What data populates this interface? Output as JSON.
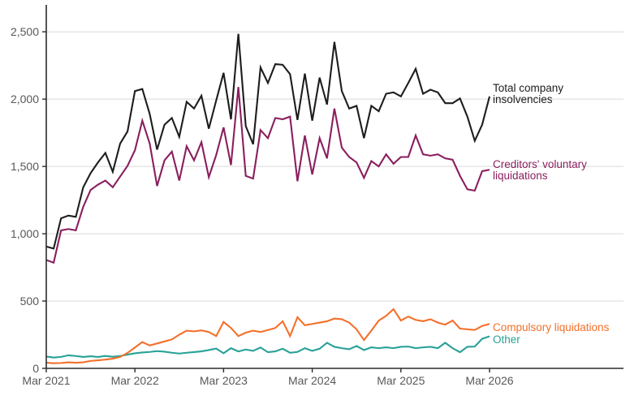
{
  "page": {
    "background": "#ffffff"
  },
  "colors": {
    "grid": "#d9d9d9",
    "axis": "#2b2b2b",
    "tick_text": "#57585a"
  },
  "chart_data": {
    "type": "line",
    "title": "",
    "xlabel": "",
    "ylabel": "",
    "grid": "horizontal",
    "legend_position": "inline-right-of-lines",
    "x_axis": {
      "unit": "month",
      "tick_labels": [
        "Mar 2021",
        "Mar 2022",
        "Mar 2023",
        "Mar 2024",
        "Mar 2025",
        "Mar 2026"
      ],
      "tick_month_indices": [
        0,
        12,
        24,
        36,
        48,
        60
      ]
    },
    "y_axis": {
      "range": [
        0,
        2500
      ],
      "ticks": [
        0,
        500,
        1000,
        1500,
        2000,
        2500
      ],
      "tick_labels": [
        "0",
        "500",
        "1,000",
        "1,500",
        "2,000",
        "2,500"
      ]
    },
    "months": [
      "Mar 2021",
      "Apr 2021",
      "May 2021",
      "Jun 2021",
      "Jul 2021",
      "Aug 2021",
      "Sep 2021",
      "Oct 2021",
      "Nov 2021",
      "Dec 2021",
      "Jan 2022",
      "Feb 2022",
      "Mar 2022",
      "Apr 2022",
      "May 2022",
      "Jun 2022",
      "Jul 2022",
      "Aug 2022",
      "Sep 2022",
      "Oct 2022",
      "Nov 2022",
      "Dec 2022",
      "Jan 2023",
      "Feb 2023",
      "Mar 2023",
      "Apr 2023",
      "May 2023",
      "Jun 2023",
      "Jul 2023",
      "Aug 2023",
      "Sep 2023",
      "Oct 2023",
      "Nov 2023",
      "Dec 2023",
      "Jan 2024",
      "Feb 2024",
      "Mar 2024",
      "Apr 2024",
      "May 2024",
      "Jun 2024",
      "Jul 2024",
      "Aug 2024",
      "Sep 2024",
      "Oct 2024",
      "Nov 2024",
      "Dec 2024",
      "Jan 2025",
      "Feb 2025",
      "Mar 2025",
      "Apr 2025",
      "May 2025",
      "Jun 2025",
      "Jul 2025",
      "Aug 2025",
      "Sep 2025",
      "Oct 2025",
      "Nov 2025",
      "Dec 2025",
      "Jan 2026",
      "Feb 2026",
      "Mar 2026"
    ],
    "series": [
      {
        "name": "Total company insolvencies",
        "color": "#1d1d1d",
        "label_lines": [
          "Total company",
          "insolvencies"
        ],
        "values": [
          905,
          890,
          1115,
          1135,
          1125,
          1345,
          1450,
          1530,
          1600,
          1460,
          1670,
          1760,
          2060,
          2075,
          1890,
          1625,
          1810,
          1860,
          1720,
          1980,
          1930,
          2025,
          1780,
          1990,
          2195,
          1850,
          2485,
          1800,
          1665,
          2235,
          2120,
          2260,
          2255,
          2185,
          1845,
          2190,
          1840,
          2160,
          1960,
          2425,
          2060,
          1930,
          1950,
          1710,
          1950,
          1910,
          2040,
          2050,
          2020,
          2120,
          2225,
          2040,
          2070,
          2050,
          1970,
          1970,
          2005,
          1870,
          1690,
          1810,
          2020
        ]
      },
      {
        "name": "Creditors' voluntary liquidations",
        "color": "#8a1f5e",
        "label_lines": [
          "Creditors' voluntary",
          "liquidations"
        ],
        "values": [
          805,
          785,
          1025,
          1035,
          1025,
          1200,
          1325,
          1365,
          1395,
          1345,
          1425,
          1505,
          1620,
          1840,
          1670,
          1355,
          1545,
          1610,
          1395,
          1650,
          1545,
          1680,
          1420,
          1585,
          1790,
          1510,
          2090,
          1430,
          1410,
          1770,
          1710,
          1860,
          1850,
          1870,
          1390,
          1730,
          1440,
          1710,
          1560,
          1930,
          1640,
          1570,
          1530,
          1415,
          1540,
          1500,
          1590,
          1520,
          1570,
          1570,
          1730,
          1590,
          1580,
          1590,
          1560,
          1550,
          1430,
          1330,
          1320,
          1465,
          1475
        ]
      },
      {
        "name": "Compulsory liquidations",
        "color": "#f4702a",
        "label_lines": [
          "Compulsory liquidations"
        ],
        "values": [
          42,
          38,
          40,
          45,
          42,
          45,
          55,
          60,
          65,
          72,
          85,
          115,
          155,
          195,
          170,
          185,
          200,
          215,
          250,
          280,
          275,
          282,
          270,
          240,
          345,
          300,
          240,
          265,
          280,
          270,
          285,
          300,
          350,
          240,
          380,
          320,
          330,
          340,
          350,
          370,
          365,
          340,
          290,
          210,
          280,
          355,
          390,
          440,
          355,
          385,
          360,
          350,
          365,
          340,
          325,
          355,
          295,
          290,
          285,
          315,
          330
        ]
      },
      {
        "name": "Other",
        "color": "#28a197",
        "label_lines": [
          "Other"
        ],
        "values": [
          88,
          80,
          85,
          97,
          92,
          85,
          90,
          85,
          92,
          86,
          92,
          102,
          112,
          118,
          122,
          128,
          124,
          116,
          110,
          116,
          121,
          126,
          136,
          147,
          112,
          150,
          126,
          140,
          130,
          155,
          120,
          126,
          146,
          116,
          122,
          150,
          130,
          146,
          190,
          160,
          150,
          142,
          166,
          136,
          156,
          150,
          156,
          150,
          160,
          162,
          150,
          156,
          160,
          150,
          190,
          150,
          120,
          160,
          162,
          220,
          238
        ]
      }
    ]
  }
}
